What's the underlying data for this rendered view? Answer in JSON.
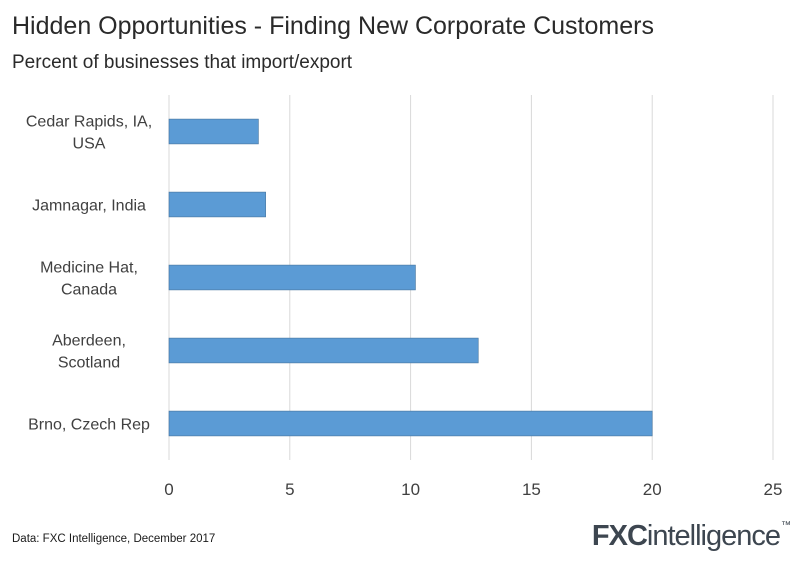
{
  "header": {
    "title": "Hidden Opportunities - Finding New Corporate Customers",
    "subtitle": "Percent of businesses that import/export"
  },
  "footer": {
    "source": "Data: FXC Intelligence, December 2017",
    "logo_prefix": "FXC",
    "logo_suffix": "intelligence",
    "logo_mark": "™"
  },
  "colors": {
    "bar": "#5b9bd5",
    "grid": "#d9d9d9",
    "text": "#404040"
  },
  "chart_data": {
    "type": "bar",
    "orientation": "horizontal",
    "title": "Hidden Opportunities - Finding New Corporate Customers",
    "subtitle": "Percent of businesses that import/export",
    "categories": [
      [
        "Cedar Rapids, IA,",
        "USA"
      ],
      [
        "Jamnagar, India"
      ],
      [
        "Medicine Hat,",
        "Canada"
      ],
      [
        "Aberdeen,",
        "Scotland"
      ],
      [
        "Brno, Czech Rep"
      ]
    ],
    "values": [
      3.7,
      4.0,
      10.2,
      12.8,
      20.0
    ],
    "xlim": [
      0,
      25
    ],
    "xticks": [
      0,
      5,
      10,
      15,
      20,
      25
    ],
    "xlabel": "",
    "ylabel": "",
    "grid": true,
    "legend": "none"
  }
}
